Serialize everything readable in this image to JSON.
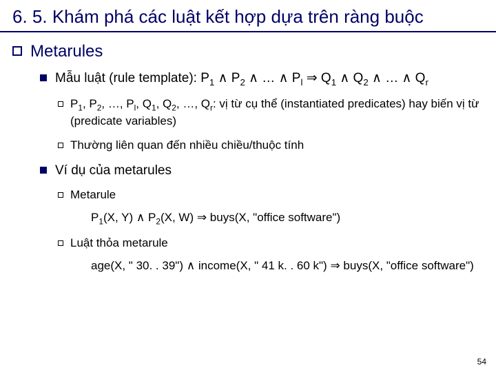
{
  "title": "6. 5. Khám phá các luật kết hợp dựa trên ràng buộc",
  "section": "Metarules",
  "rule_template_label": "Mẫu luật (rule template): ",
  "rule_template_formula_html": "P<span class='sub'>1</span> ∧ P<span class='sub'>2</span> ∧ … ∧ P<span class='sub'>l</span> ⇒ Q<span class='sub'>1</span> ∧ Q<span class='sub'>2</span> ∧ … ∧ Q<span class='sub'>r</span>",
  "predicate_note_html": "P<span class='sub'>1</span>, P<span class='sub'>2</span>, …, P<span class='sub'>l</span>, Q<span class='sub'>1</span>, Q<span class='sub'>2</span>, …, Q<span class='sub'>r</span>: vị từ cụ thể (instantiated predicates) hay biến vị từ (predicate variables)",
  "dimension_note": "Thường liên quan đến nhiều chiều/thuộc tính",
  "example_heading": "Ví dụ của metarules",
  "metarule_label": "Metarule",
  "metarule_example_html": "P<span class='sub'>1</span>(X, Y) ∧ P<span class='sub'>2</span>(X, W) ⇒ buys(X, \"office software\")",
  "constraint_label": "Luật thỏa metarule",
  "constraint_example_html": "age(X, \" 30. . 39\") ∧ income(X, \" 41 k. . 60 k\") ⇒ buys(X, \"office software\")",
  "page_number": "54",
  "colors": {
    "primary": "#000066",
    "text": "#000000",
    "background": "#ffffff"
  }
}
